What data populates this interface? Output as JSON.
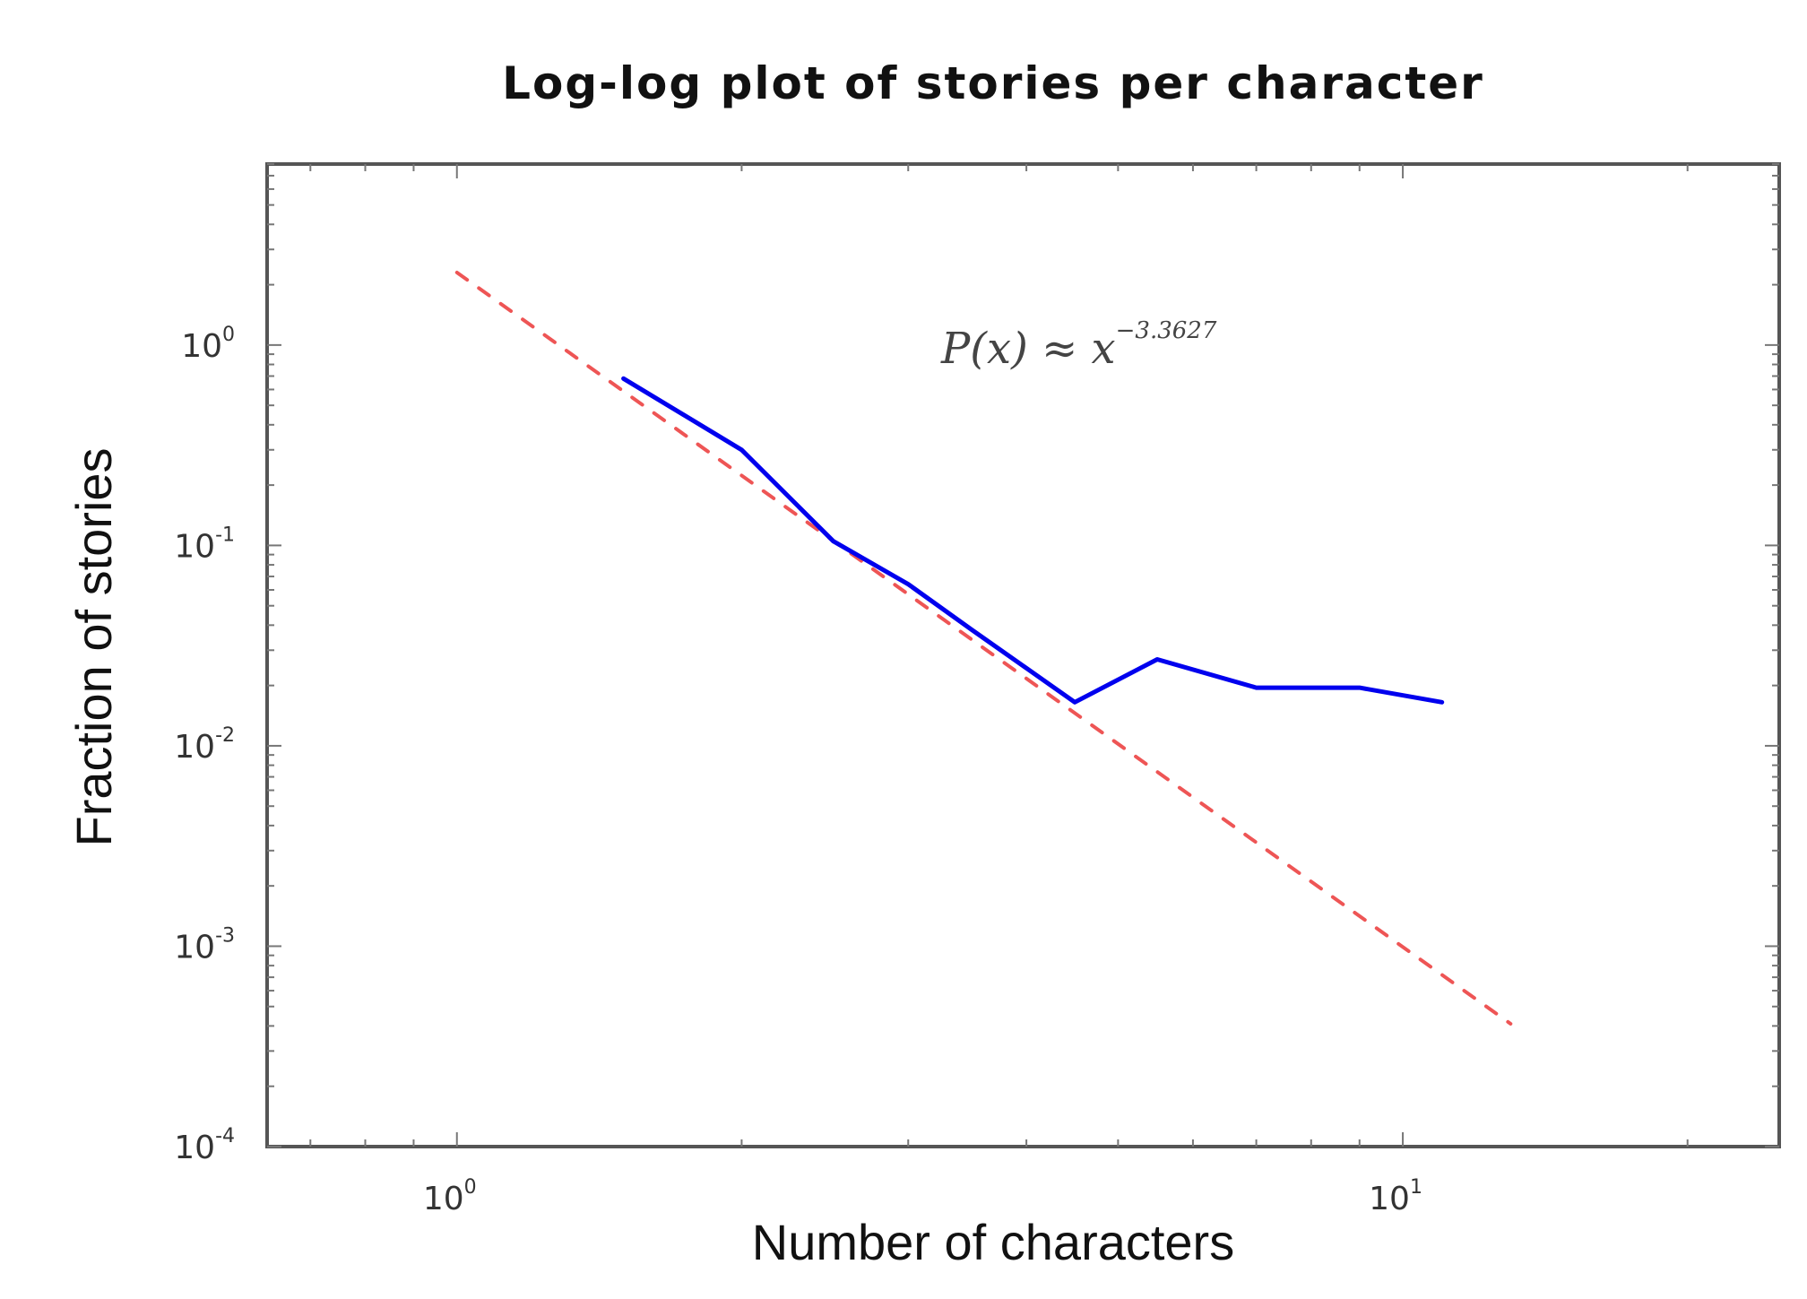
{
  "chart_data": {
    "type": "line",
    "title": "Log-log plot of stories per character",
    "xlabel": "Number of characters",
    "ylabel": "Fraction of stories",
    "xscale": "log",
    "yscale": "log",
    "xlim": [
      0.63,
      25
    ],
    "ylim": [
      0.0001,
      8
    ],
    "grid": false,
    "x_ticks": [
      {
        "value": 1,
        "base": "10",
        "exp": "0"
      },
      {
        "value": 10,
        "base": "10",
        "exp": "1"
      }
    ],
    "y_ticks": [
      {
        "value": 1,
        "base": "10",
        "exp": "0"
      },
      {
        "value": 0.1,
        "base": "10",
        "exp": "-1"
      },
      {
        "value": 0.01,
        "base": "10",
        "exp": "-2"
      },
      {
        "value": 0.001,
        "base": "10",
        "exp": "-3"
      },
      {
        "value": 0.0001,
        "base": "10",
        "exp": "-4"
      }
    ],
    "series": [
      {
        "style": "solid",
        "color": "#0000ee",
        "x": [
          1.5,
          2.0,
          2.5,
          3.0,
          3.5,
          4.5,
          5.5,
          7.0,
          9.0,
          11.0
        ],
        "y": [
          0.68,
          0.3,
          0.105,
          0.064,
          0.038,
          0.0165,
          0.027,
          0.0195,
          0.0195,
          0.0165
        ]
      },
      {
        "style": "dashed",
        "color": "#ee5555",
        "x": [
          1.0,
          13.0
        ],
        "y": [
          2.3,
          0.00041
        ]
      }
    ],
    "annotation": {
      "base": "P(x) ≈ x",
      "exp": "−3.3627"
    }
  }
}
